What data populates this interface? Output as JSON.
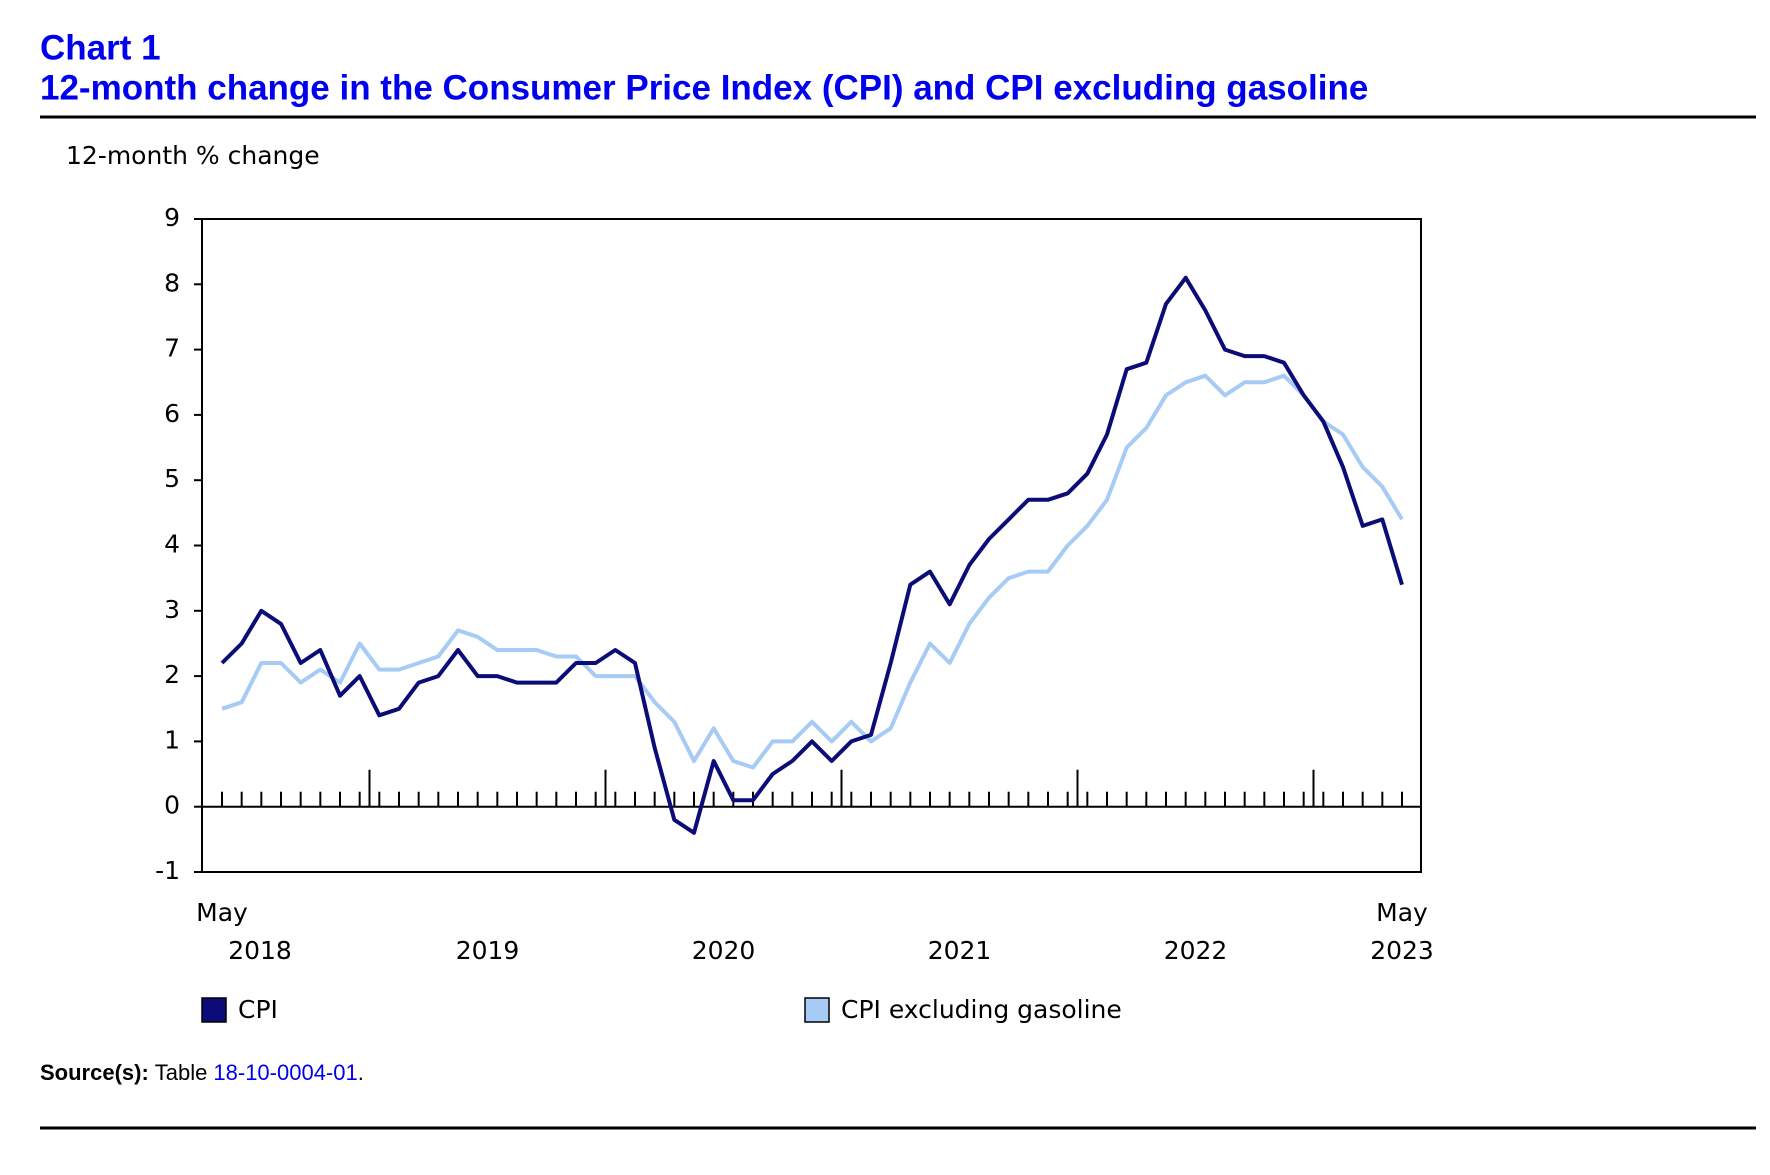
{
  "chart_data": {
    "type": "line",
    "label": "Chart 1",
    "title": "12-month change in the Consumer Price Index (CPI) and CPI excluding gasoline",
    "y_axis_title": "12-month % change",
    "categories": [
      "May",
      null,
      null,
      null,
      null,
      null,
      null,
      null,
      null,
      null,
      null,
      null,
      null,
      null,
      null,
      null,
      null,
      null,
      null,
      null,
      null,
      null,
      null,
      null,
      null,
      null,
      null,
      null,
      null,
      null,
      null,
      null,
      null,
      null,
      null,
      null,
      null,
      null,
      null,
      null,
      null,
      null,
      null,
      null,
      null,
      null,
      null,
      null,
      null,
      null,
      null,
      null,
      null,
      null,
      null,
      null,
      null,
      null,
      null,
      null,
      "May"
    ],
    "xticks": [
      8,
      20,
      32,
      44,
      56
    ],
    "year_labels": [
      "2018",
      "2019",
      "2020",
      "2021",
      "2022",
      "2023"
    ],
    "series": [
      {
        "name": "CPI",
        "color": "#0c0c78",
        "values": [
          2.2,
          2.5,
          3.0,
          2.8,
          2.2,
          2.4,
          1.7,
          2.0,
          1.4,
          1.5,
          1.9,
          2.0,
          2.4,
          2.0,
          2.0,
          1.9,
          1.9,
          1.9,
          2.2,
          2.2,
          2.4,
          2.2,
          0.9,
          -0.2,
          -0.4,
          0.7,
          0.1,
          0.1,
          0.5,
          0.7,
          1.0,
          0.7,
          1.0,
          1.1,
          2.2,
          3.4,
          3.6,
          3.1,
          3.7,
          4.1,
          4.4,
          4.7,
          4.7,
          4.8,
          5.1,
          5.7,
          6.7,
          6.8,
          7.7,
          8.1,
          7.6,
          7.0,
          6.9,
          6.9,
          6.8,
          6.3,
          5.9,
          5.2,
          4.3,
          4.4,
          3.4
        ]
      },
      {
        "name": "CPI excluding gasoline",
        "color": "#a6cbf4",
        "values": [
          1.5,
          1.6,
          2.2,
          2.2,
          1.9,
          2.1,
          1.9,
          2.5,
          2.1,
          2.1,
          2.2,
          2.3,
          2.7,
          2.6,
          2.4,
          2.4,
          2.4,
          2.3,
          2.3,
          2.0,
          2.0,
          2.0,
          1.6,
          1.3,
          0.7,
          1.2,
          0.7,
          0.6,
          1.0,
          1.0,
          1.3,
          1.0,
          1.3,
          1.0,
          1.2,
          1.9,
          2.5,
          2.2,
          2.8,
          3.2,
          3.5,
          3.6,
          3.6,
          4.0,
          4.3,
          4.7,
          5.5,
          5.8,
          6.3,
          6.5,
          6.6,
          6.3,
          6.5,
          6.5,
          6.6,
          6.3,
          5.9,
          5.7,
          5.2,
          4.9,
          4.4
        ]
      }
    ],
    "ylim": [
      -1,
      9
    ],
    "yticks": [
      -1,
      0,
      1,
      2,
      3,
      4,
      5,
      6,
      7,
      8,
      9
    ],
    "source": {
      "label": "Source(s):",
      "prefix": "Table",
      "link": "18-10-0004-01",
      "suffix": "."
    }
  }
}
